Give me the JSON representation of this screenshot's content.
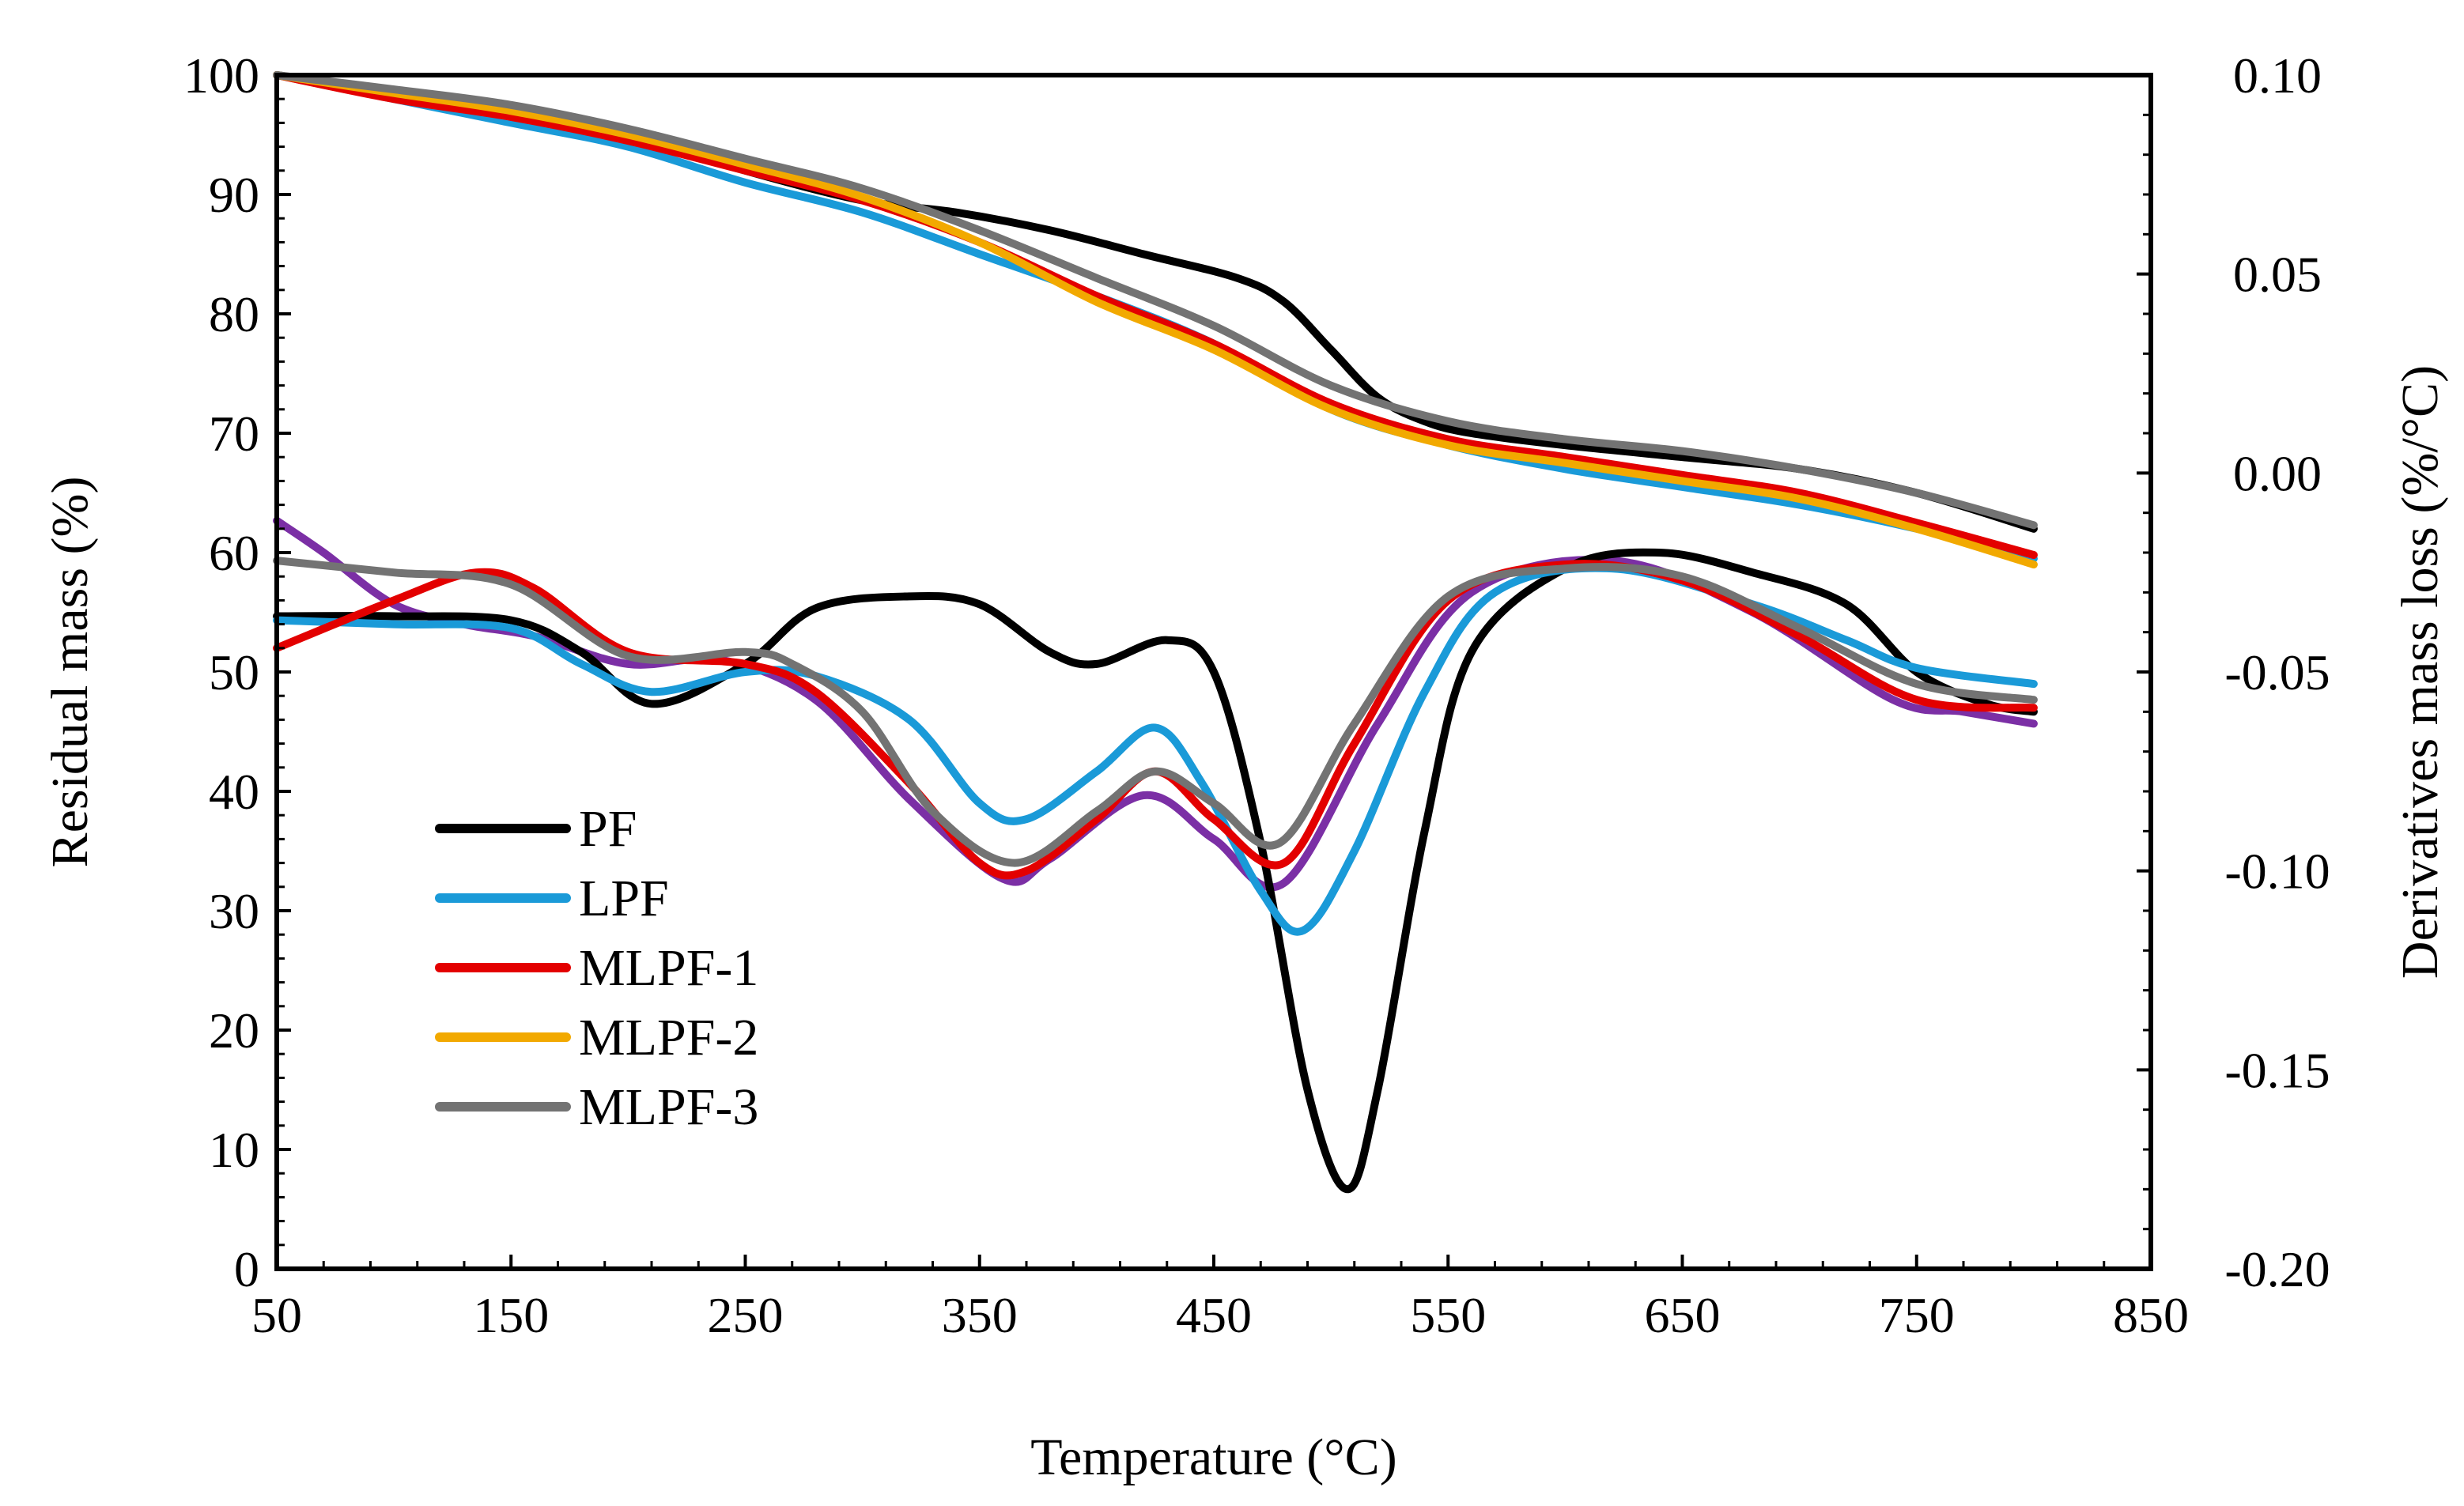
{
  "chart_data": {
    "type": "line",
    "title": "",
    "xlabel": "Temperature (°C)",
    "ylabel": "Residual mass (%)",
    "y2label": "Derivatives mass loss (%/°C)",
    "xlim": [
      50,
      850
    ],
    "ylim": [
      0,
      100
    ],
    "y2lim": [
      -0.2,
      0.1
    ],
    "grid": false,
    "legend_position": "bottom-left",
    "x_ticks": [
      50,
      150,
      250,
      350,
      450,
      550,
      650,
      750,
      850
    ],
    "x_tick_labels": [
      "50",
      "150",
      "250",
      "350",
      "450",
      "550",
      "650",
      "750",
      "850"
    ],
    "y_ticks": [
      0,
      10,
      20,
      30,
      40,
      50,
      60,
      70,
      80,
      90,
      100
    ],
    "y_tick_labels": [
      "0",
      "10",
      "20",
      "30",
      "40",
      "50",
      "60",
      "70",
      "80",
      "90",
      "100"
    ],
    "y2_ticks": [
      0.1,
      0.05,
      0.0,
      -0.05,
      -0.1,
      -0.15,
      -0.2
    ],
    "y2_tick_labels": [
      "0.10",
      "0.05",
      "0.00",
      "-0.05",
      "-0.10",
      "-0.15",
      "-0.20"
    ],
    "legend": [
      {
        "label": "PF",
        "color": "#000000"
      },
      {
        "label": "LPF",
        "color": "#1a9ad8"
      },
      {
        "label": "MLPF-1",
        "color": "#e30000"
      },
      {
        "label": "MLPF-2",
        "color": "#f2a900"
      },
      {
        "label": "MLPF-3",
        "color": "#737373"
      }
    ],
    "series": [
      {
        "name": "PF TG",
        "axis": "left",
        "color": "#000000",
        "x": [
          50,
          100,
          150,
          200,
          250,
          300,
          340,
          380,
          420,
          460,
          480,
          500,
          520,
          540,
          560,
          600,
          650,
          700,
          750,
          800
        ],
        "y": [
          100,
          98.5,
          97,
          95,
          92,
          89.5,
          88.5,
          87,
          85,
          83,
          81,
          77,
          73,
          71,
          70,
          69,
          68,
          67,
          65,
          62
        ]
      },
      {
        "name": "LPF TG",
        "axis": "left",
        "color": "#1a9ad8",
        "x": [
          50,
          100,
          150,
          200,
          250,
          300,
          350,
          400,
          450,
          500,
          550,
          600,
          650,
          700,
          750,
          800
        ],
        "y": [
          100,
          98,
          96,
          94,
          91,
          88.5,
          85,
          81.5,
          77.5,
          72,
          69,
          67,
          65.5,
          64,
          62,
          59.5
        ]
      },
      {
        "name": "MLPF-1 TG",
        "axis": "left",
        "color": "#e30000",
        "x": [
          50,
          100,
          150,
          200,
          250,
          300,
          350,
          400,
          450,
          500,
          550,
          600,
          650,
          700,
          750,
          800
        ],
        "y": [
          100,
          98,
          96.5,
          94.5,
          92,
          89.5,
          86,
          81.5,
          77.5,
          72.5,
          69.5,
          68,
          66.5,
          65,
          62.5,
          59.8
        ]
      },
      {
        "name": "MLPF-2 TG",
        "axis": "left",
        "color": "#f2a900",
        "x": [
          50,
          100,
          150,
          200,
          250,
          300,
          350,
          400,
          450,
          500,
          550,
          600,
          650,
          700,
          750,
          800
        ],
        "y": [
          100,
          98.5,
          97,
          95,
          92.5,
          89.8,
          86,
          81,
          77,
          72,
          69,
          67.5,
          66,
          64.5,
          62,
          59
        ]
      },
      {
        "name": "MLPF-3 TG",
        "axis": "left",
        "color": "#737373",
        "x": [
          50,
          100,
          150,
          200,
          250,
          300,
          350,
          400,
          450,
          500,
          550,
          600,
          650,
          700,
          750,
          800
        ],
        "y": [
          100,
          98.8,
          97.5,
          95.5,
          93,
          90.5,
          87,
          83,
          79,
          74,
          71,
          69.5,
          68.5,
          67,
          65,
          62.3
        ]
      },
      {
        "name": "MLPF-3 purple DTG",
        "axis": "right",
        "color": "#7b2fa5",
        "x": [
          50,
          70,
          100,
          130,
          160,
          200,
          240,
          280,
          320,
          360,
          380,
          420,
          450,
          480,
          520,
          560,
          620,
          680,
          740,
          770,
          800
        ],
        "y": [
          -0.012,
          -0.02,
          -0.033,
          -0.038,
          -0.041,
          -0.048,
          -0.047,
          -0.057,
          -0.082,
          -0.102,
          -0.097,
          -0.081,
          -0.092,
          -0.103,
          -0.063,
          -0.03,
          -0.022,
          -0.035,
          -0.057,
          -0.06,
          -0.063
        ]
      },
      {
        "name": "PF DTG",
        "axis": "right",
        "color": "#000000",
        "x": [
          50,
          100,
          150,
          180,
          210,
          250,
          280,
          320,
          350,
          380,
          400,
          430,
          450,
          470,
          490,
          507,
          520,
          540,
          560,
          600,
          640,
          680,
          720,
          750,
          780,
          800
        ],
        "y": [
          -0.036,
          -0.036,
          -0.037,
          -0.045,
          -0.058,
          -0.048,
          -0.034,
          -0.031,
          -0.033,
          -0.045,
          -0.048,
          -0.042,
          -0.05,
          -0.093,
          -0.155,
          -0.18,
          -0.155,
          -0.09,
          -0.045,
          -0.024,
          -0.02,
          -0.025,
          -0.033,
          -0.05,
          -0.058,
          -0.06
        ]
      },
      {
        "name": "LPF DTG",
        "axis": "right",
        "color": "#1a9ad8",
        "x": [
          50,
          100,
          150,
          180,
          210,
          250,
          280,
          320,
          350,
          370,
          400,
          425,
          445,
          470,
          488,
          510,
          540,
          570,
          620,
          680,
          720,
          750,
          800
        ],
        "y": [
          -0.037,
          -0.038,
          -0.039,
          -0.048,
          -0.055,
          -0.05,
          -0.051,
          -0.062,
          -0.083,
          -0.087,
          -0.075,
          -0.064,
          -0.078,
          -0.105,
          -0.115,
          -0.095,
          -0.055,
          -0.03,
          -0.024,
          -0.033,
          -0.042,
          -0.049,
          -0.053
        ]
      },
      {
        "name": "MLPF-1 DTG",
        "axis": "right",
        "color": "#e30000",
        "x": [
          50,
          100,
          135,
          160,
          200,
          250,
          280,
          320,
          350,
          370,
          400,
          425,
          450,
          480,
          510,
          550,
          600,
          650,
          700,
          750,
          800
        ],
        "y": [
          -0.044,
          -0.032,
          -0.025,
          -0.029,
          -0.045,
          -0.048,
          -0.055,
          -0.078,
          -0.098,
          -0.1,
          -0.087,
          -0.075,
          -0.087,
          -0.098,
          -0.068,
          -0.032,
          -0.023,
          -0.027,
          -0.041,
          -0.057,
          -0.059
        ]
      },
      {
        "name": "MLPF-3 DTG",
        "axis": "right",
        "color": "#737373",
        "x": [
          50,
          100,
          150,
          200,
          250,
          270,
          300,
          330,
          365,
          400,
          425,
          450,
          478,
          510,
          550,
          600,
          650,
          700,
          750,
          800
        ],
        "y": [
          -0.022,
          -0.025,
          -0.028,
          -0.046,
          -0.045,
          -0.048,
          -0.06,
          -0.085,
          -0.098,
          -0.085,
          -0.075,
          -0.083,
          -0.093,
          -0.063,
          -0.031,
          -0.024,
          -0.026,
          -0.039,
          -0.053,
          -0.057
        ]
      }
    ]
  }
}
